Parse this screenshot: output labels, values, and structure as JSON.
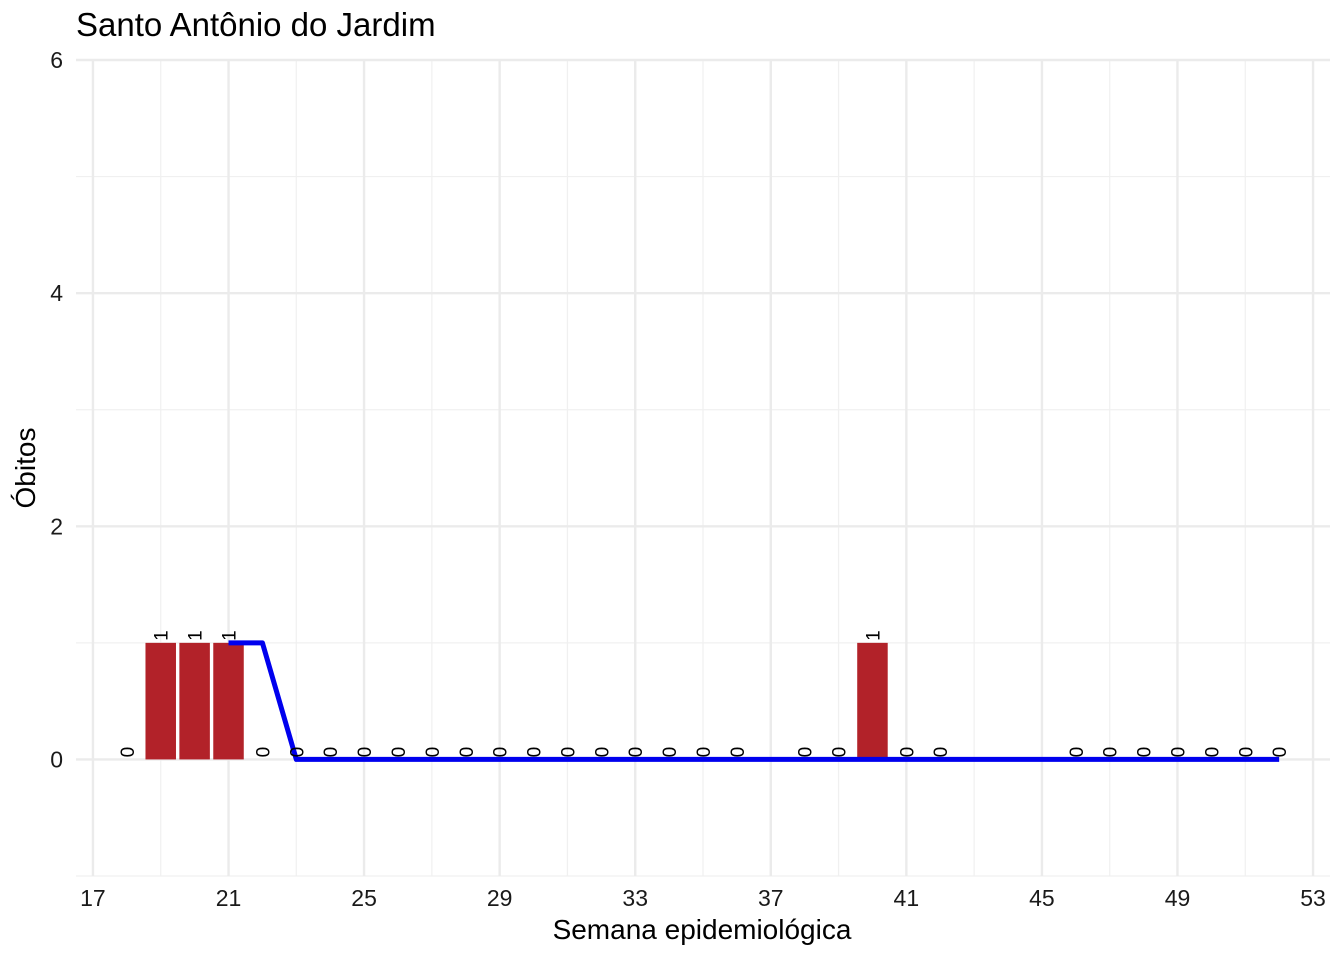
{
  "chart_data": {
    "type": "bar",
    "title": "Santo Antônio do Jardim",
    "xlabel": "Semana epidemiológica",
    "ylabel": "Óbitos",
    "xlim": [
      16.5,
      53.5
    ],
    "ylim": [
      -1,
      6
    ],
    "x_ticks": [
      17,
      21,
      25,
      29,
      33,
      37,
      41,
      45,
      49,
      53
    ],
    "y_ticks": [
      0,
      2,
      4,
      6
    ],
    "grid": true,
    "bar_color": "#B22229",
    "line_color": "#0000EE",
    "bars": [
      {
        "week": 18,
        "value": 0
      },
      {
        "week": 19,
        "value": 1
      },
      {
        "week": 20,
        "value": 1
      },
      {
        "week": 21,
        "value": 1
      },
      {
        "week": 22,
        "value": 0
      },
      {
        "week": 23,
        "value": 0
      },
      {
        "week": 24,
        "value": 0
      },
      {
        "week": 25,
        "value": 0
      },
      {
        "week": 26,
        "value": 0
      },
      {
        "week": 27,
        "value": 0
      },
      {
        "week": 28,
        "value": 0
      },
      {
        "week": 29,
        "value": 0
      },
      {
        "week": 30,
        "value": 0
      },
      {
        "week": 31,
        "value": 0
      },
      {
        "week": 32,
        "value": 0
      },
      {
        "week": 33,
        "value": 0
      },
      {
        "week": 34,
        "value": 0
      },
      {
        "week": 35,
        "value": 0
      },
      {
        "week": 36,
        "value": 0
      },
      {
        "week": 38,
        "value": 0
      },
      {
        "week": 39,
        "value": 0
      },
      {
        "week": 40,
        "value": 1
      },
      {
        "week": 41,
        "value": 0
      },
      {
        "week": 42,
        "value": 0
      },
      {
        "week": 46,
        "value": 0
      },
      {
        "week": 47,
        "value": 0
      },
      {
        "week": 48,
        "value": 0
      },
      {
        "week": 49,
        "value": 0
      },
      {
        "week": 50,
        "value": 0
      },
      {
        "week": 51,
        "value": 0
      },
      {
        "week": 52,
        "value": 0
      }
    ],
    "line": {
      "x": [
        21,
        22,
        23,
        24,
        25,
        26,
        27,
        28,
        29,
        30,
        31,
        32,
        33,
        34,
        35,
        36,
        37,
        38,
        39,
        40,
        41,
        42,
        43,
        44,
        45,
        46,
        47,
        48,
        49,
        50,
        51,
        52
      ],
      "y": [
        1,
        1,
        0,
        0,
        0,
        0,
        0,
        0,
        0,
        0,
        0,
        0,
        0,
        0,
        0,
        0,
        0,
        0,
        0,
        0,
        0,
        0,
        0,
        0,
        0,
        0,
        0,
        0,
        0,
        0,
        0,
        0
      ]
    }
  }
}
